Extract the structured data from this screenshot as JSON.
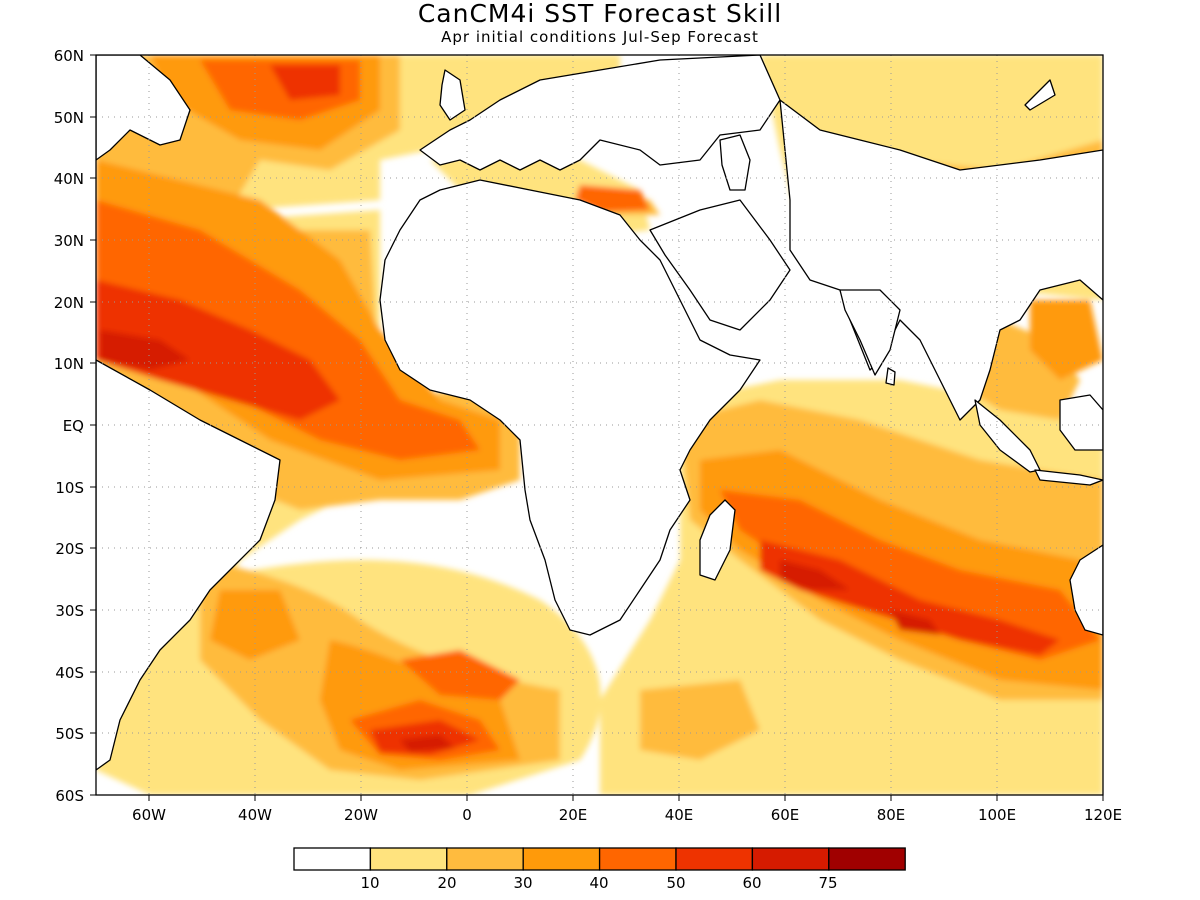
{
  "title": "CanCM4i SST Forecast Skill",
  "subtitle": "Apr initial conditions   Jul-Sep Forecast",
  "map": {
    "lon_range": [
      -70,
      120
    ],
    "lat_range": [
      -60,
      60
    ],
    "lat_ticks": [
      "60N",
      "50N",
      "40N",
      "30N",
      "20N",
      "10N",
      "EQ",
      "10S",
      "20S",
      "30S",
      "40S",
      "50S",
      "60S"
    ],
    "lon_ticks": [
      "60W",
      "40W",
      "20W",
      "0",
      "20E",
      "40E",
      "60E",
      "80E",
      "100E",
      "120E"
    ],
    "grid": "dotted"
  },
  "legend": {
    "labels": [
      "10",
      "20",
      "30",
      "40",
      "50",
      "60",
      "75"
    ],
    "colors": [
      "#ffffff",
      "#ffe37e",
      "#ffbb3e",
      "#ff9a0a",
      "#ff6600",
      "#ee3300",
      "#d61b00",
      "#a00000"
    ]
  },
  "colors": {
    "land": "#ffffff",
    "coast": "#000000",
    "grid": "#999999"
  }
}
